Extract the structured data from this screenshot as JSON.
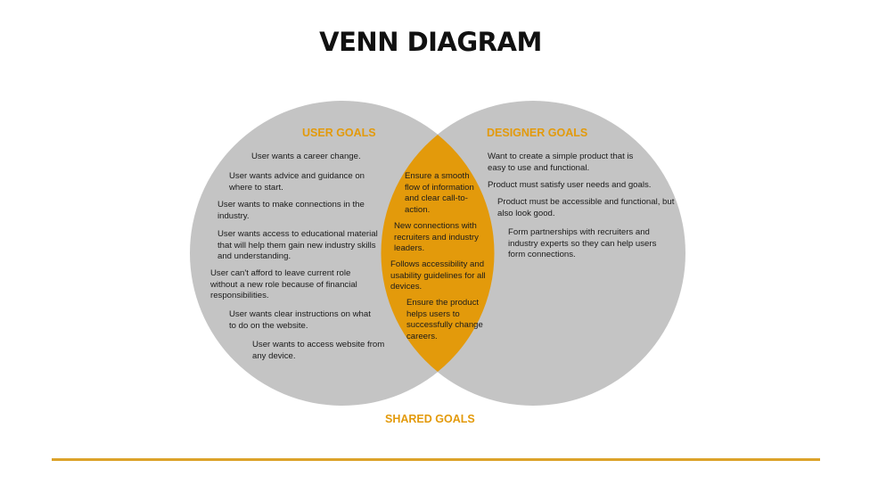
{
  "title": "VENN DIAGRAM",
  "colors": {
    "circle": "#c4c4c4",
    "overlap": "#e39a0b",
    "accent": "#e39a0b",
    "rule": "#dca32a"
  },
  "left_circle": {
    "label": "USER GOALS",
    "items": [
      "User wants a career change.",
      "User wants advice and guidance on where to start.",
      "User wants to make connections in the industry.",
      "User wants access to educational material that will help them gain new industry skills and understanding.",
      "User can't afford to leave current role without a new role because of financial responsibilities.",
      "User wants clear instructions on what to do on the website.",
      "User wants to access website from any device."
    ]
  },
  "right_circle": {
    "label": "DESIGNER GOALS",
    "items": [
      "Want to create a simple product that is easy to use and functional.",
      "Product must satisfy user needs and goals.",
      "Product must be accessible and functional, but also look good.",
      "Form partnerships with recruiters and industry experts so they can help users form connections."
    ]
  },
  "overlap": {
    "label": "SHARED  GOALS",
    "items": [
      "Ensure a smooth flow of information and clear call-to-action.",
      "New connections with recruiters and industry leaders.",
      "Follows accessibility and usability guidelines for all devices.",
      "Ensure the product helps users to successfully change careers."
    ]
  }
}
